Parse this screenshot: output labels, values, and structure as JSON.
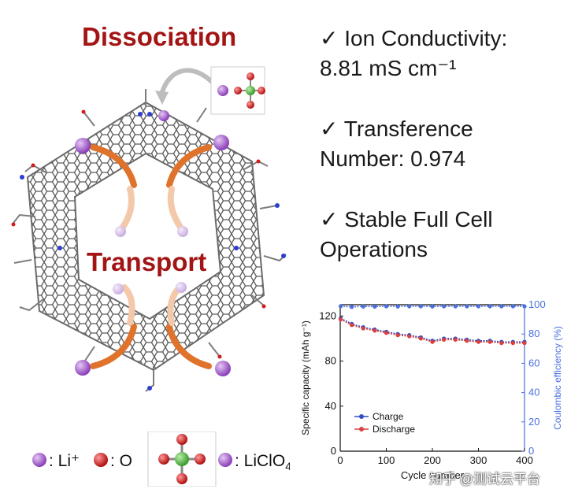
{
  "titles": {
    "dissociation": "Dissociation",
    "transport": "Transport"
  },
  "features": [
    {
      "check": "✓",
      "line1": "Ion Conductivity:",
      "line2": "8.81 mS cm⁻¹"
    },
    {
      "check": "✓",
      "line1": "Transference",
      "line2": "Number: 0.974"
    },
    {
      "check": "✓",
      "line1": "Stable Full Cell",
      "line2": "Operations"
    }
  ],
  "legend": {
    "li": ": Li⁺",
    "o": ": O",
    "liclo4_prefix": ": LiClO",
    "liclo4_sub": "4"
  },
  "colors": {
    "title": "#a31515",
    "li": "#9b59c6",
    "oxygen": "#d11c1c",
    "chlorine": "#4caf50",
    "charge": "#2e4fbf",
    "discharge": "#d94040",
    "ce": "#4a6fe0",
    "arrow": "#e0732c"
  },
  "chart_data": {
    "type": "scatter",
    "xlabel": "Cycle number",
    "ylabel": "Specific capacity (mAh g⁻¹)",
    "y2label": "Coulombic efficiency (%)",
    "xlim": [
      0,
      400
    ],
    "ylim": [
      0,
      130
    ],
    "y2lim": [
      0,
      100
    ],
    "xticks": [
      "0",
      "100",
      "200",
      "300",
      "400"
    ],
    "yticks": [
      "0",
      "40",
      "80",
      "120"
    ],
    "y2ticks": [
      "0",
      "20",
      "40",
      "60",
      "80",
      "100"
    ],
    "legend": [
      "Charge",
      "Discharge"
    ],
    "series": [
      {
        "name": "Charge",
        "axis": "left",
        "x": [
          1,
          25,
          50,
          75,
          100,
          125,
          150,
          175,
          200,
          225,
          250,
          275,
          300,
          325,
          350,
          375,
          400
        ],
        "values": [
          118,
          113,
          110,
          108,
          106,
          104,
          103,
          101,
          98,
          100,
          100,
          99,
          98,
          98,
          97,
          97,
          97
        ]
      },
      {
        "name": "Discharge",
        "axis": "left",
        "x": [
          1,
          25,
          50,
          75,
          100,
          125,
          150,
          175,
          200,
          225,
          250,
          275,
          300,
          325,
          350,
          375,
          400
        ],
        "values": [
          117,
          112,
          109,
          107,
          105,
          103,
          102,
          100,
          97,
          99,
          99,
          98,
          97,
          97,
          96,
          96,
          96
        ]
      },
      {
        "name": "Coulombic efficiency",
        "axis": "right",
        "x": [
          1,
          25,
          50,
          75,
          100,
          125,
          150,
          175,
          200,
          225,
          250,
          275,
          300,
          325,
          350,
          375,
          400
        ],
        "values": [
          99,
          98.5,
          98.8,
          98.7,
          98.9,
          98.8,
          98.9,
          98.9,
          98.8,
          98.9,
          98.9,
          98.9,
          98.9,
          98.9,
          98.9,
          98.9,
          98.9
        ]
      }
    ]
  },
  "watermark": "知乎 @测试云平台"
}
